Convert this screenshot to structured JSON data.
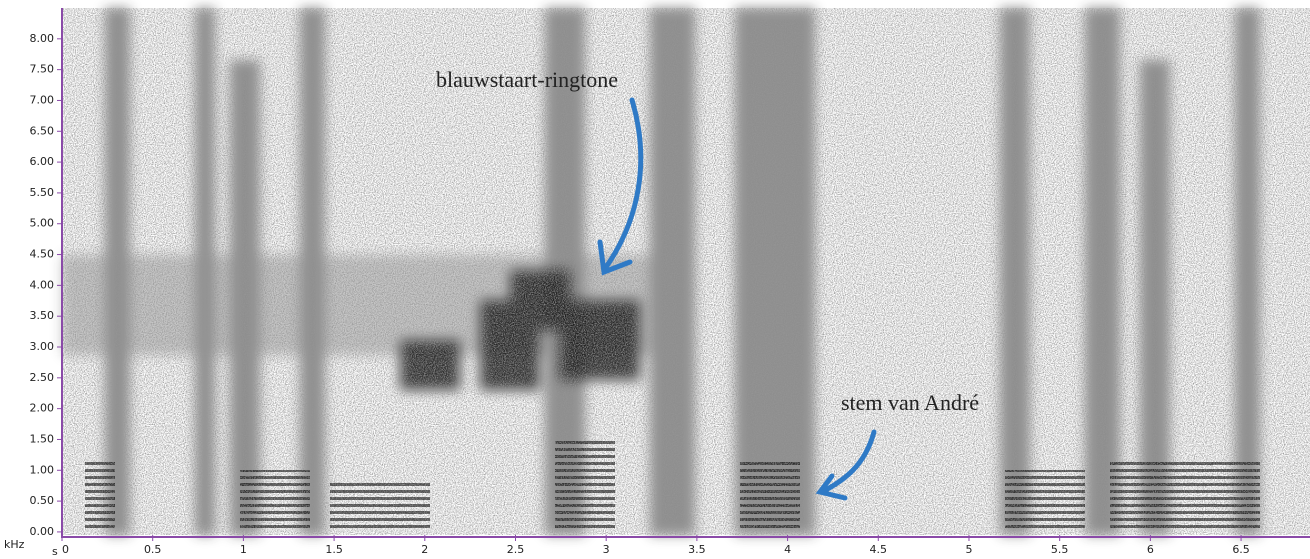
{
  "chart_data": {
    "type": "spectrogram",
    "x_label": "s",
    "y_label": "kHz",
    "xlim": [
      0,
      6.88
    ],
    "ylim": [
      -0.05,
      8.5
    ],
    "xticks": [
      0,
      0.5,
      1,
      1.5,
      2,
      2.5,
      3,
      3.5,
      4,
      4.5,
      5,
      5.5,
      6,
      6.5
    ],
    "yticks": [
      {
        "value": 0,
        "label": "0.00"
      },
      {
        "value": 0.5,
        "label": "0.50"
      },
      {
        "value": 1,
        "label": "1.00"
      },
      {
        "value": 1.5,
        "label": "1.50"
      },
      {
        "value": 2,
        "label": "2.00"
      },
      {
        "value": 2.5,
        "label": "2.50"
      },
      {
        "value": 3,
        "label": "3.00"
      },
      {
        "value": 3.5,
        "label": "3.50"
      },
      {
        "value": 4,
        "label": "4.00"
      },
      {
        "value": 4.5,
        "label": "4.50"
      },
      {
        "value": 5,
        "label": "5.00"
      },
      {
        "value": 5.5,
        "label": "5.50"
      },
      {
        "value": 6,
        "label": "6.00"
      },
      {
        "value": 6.5,
        "label": "6.50"
      },
      {
        "value": 7,
        "label": "7.00"
      },
      {
        "value": 7.5,
        "label": "7.50"
      },
      {
        "value": 8,
        "label": "8.00"
      }
    ],
    "annotations": [
      "blauwstaart-ringtone",
      "stem van André"
    ]
  }
}
